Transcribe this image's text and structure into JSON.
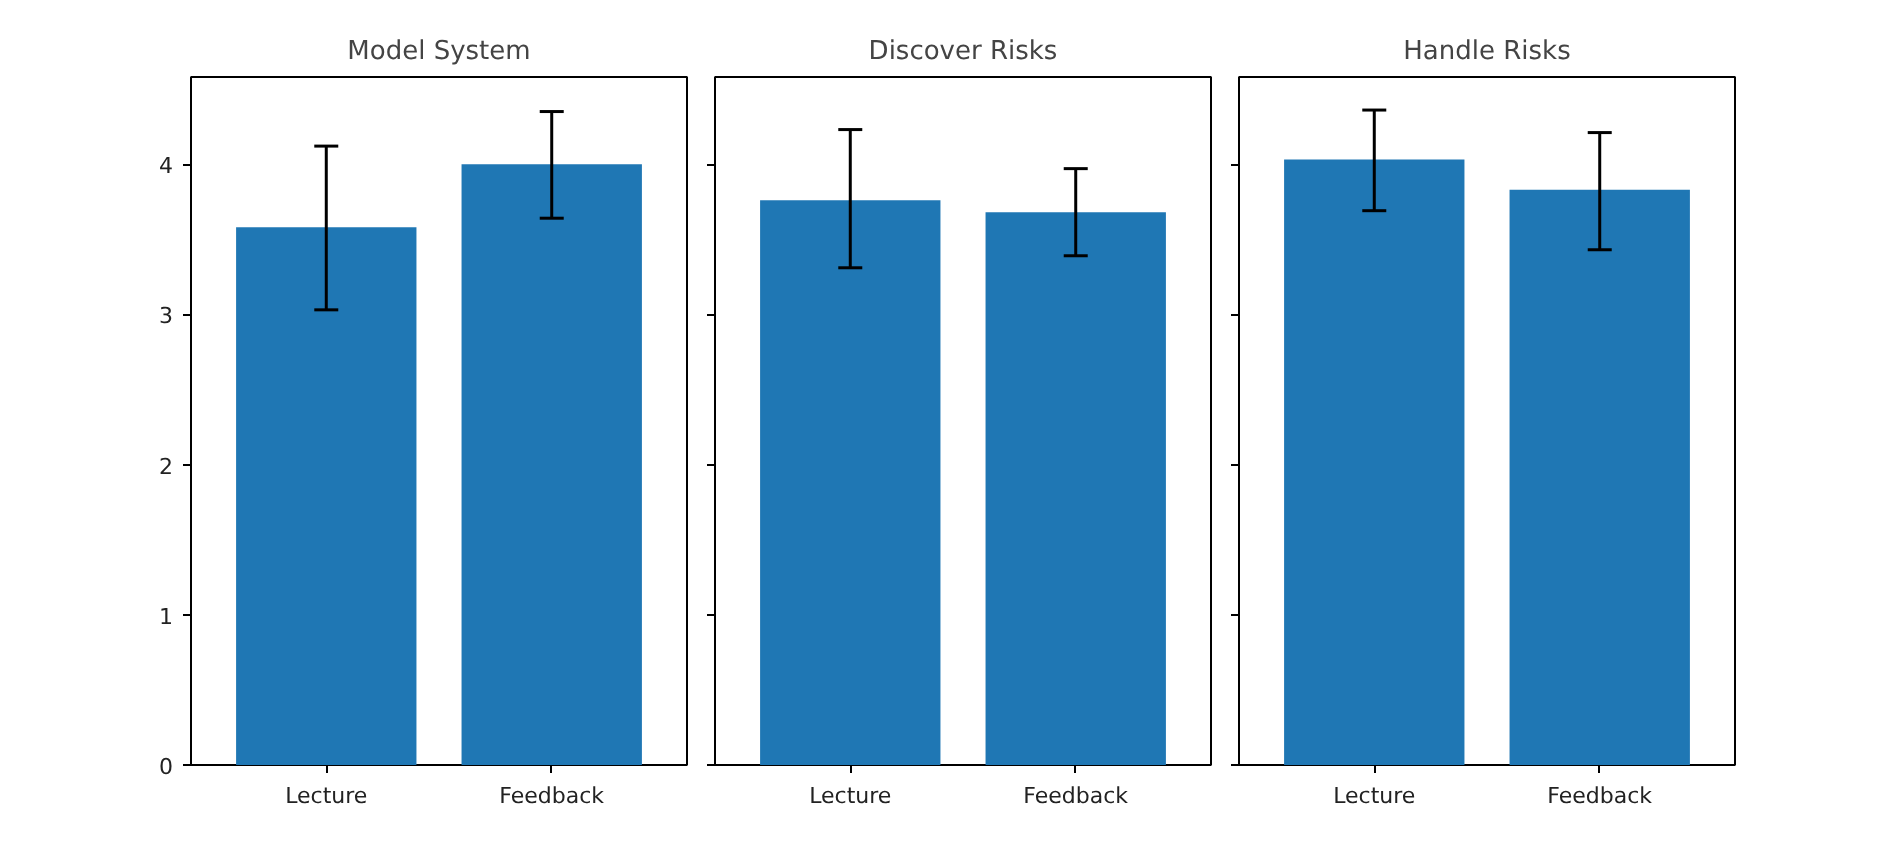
{
  "chart_data": [
    {
      "type": "bar",
      "title": "Model System",
      "categories": [
        "Lecture",
        "Feedback"
      ],
      "values": [
        3.58,
        4.0
      ],
      "errors": [
        [
          3.03,
          4.12
        ],
        [
          3.64,
          4.35
        ]
      ],
      "color": "#1f77b4",
      "ylim": [
        0,
        4.58
      ],
      "yticks": [
        0,
        1,
        2,
        3,
        4
      ],
      "grid": false
    },
    {
      "type": "bar",
      "title": "Discover Risks",
      "categories": [
        "Lecture",
        "Feedback"
      ],
      "values": [
        3.76,
        3.68
      ],
      "errors": [
        [
          3.31,
          4.23
        ],
        [
          3.39,
          3.97
        ]
      ],
      "color": "#1f77b4",
      "ylim": [
        0,
        4.58
      ],
      "yticks": [
        0,
        1,
        2,
        3,
        4
      ],
      "grid": false,
      "tick_labels": "x"
    },
    {
      "type": "bar",
      "title": "Handle Risks",
      "categories": [
        "Lecture",
        "Feedback"
      ],
      "values": [
        4.03,
        3.83
      ],
      "errors": [
        [
          3.69,
          4.36
        ],
        [
          3.43,
          4.21
        ]
      ],
      "color": "#1f77b4",
      "ylim": [
        0,
        4.58
      ],
      "yticks": [
        0,
        1,
        2,
        3,
        4
      ],
      "grid": false,
      "tick_labels": "x"
    }
  ]
}
